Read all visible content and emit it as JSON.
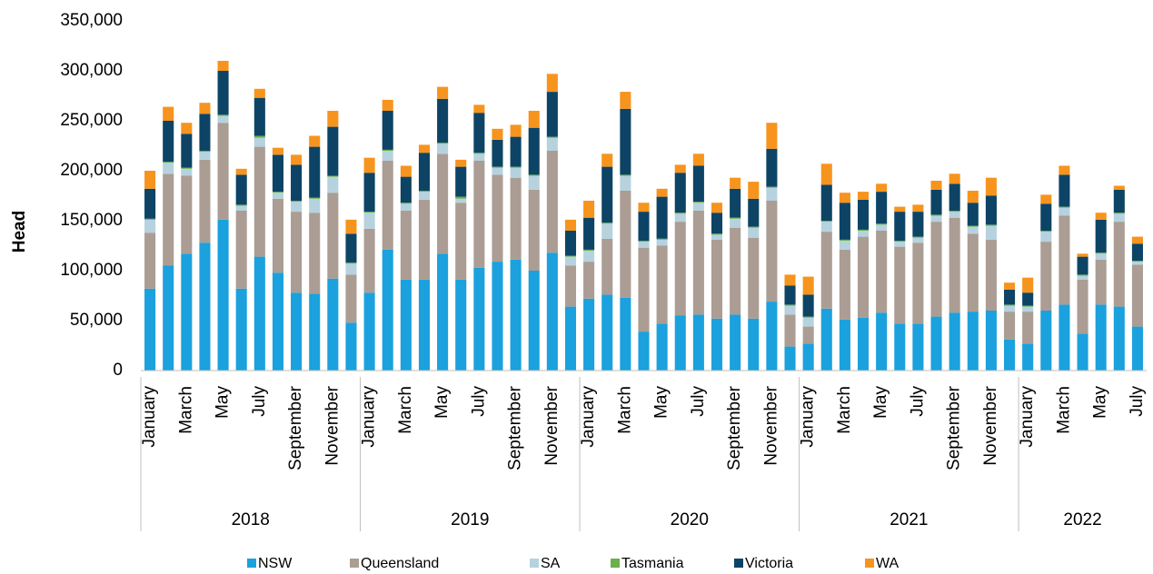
{
  "chart_data": {
    "type": "stacked_bar",
    "y_label": "Head",
    "categories": [
      "January",
      null,
      "March",
      null,
      "May",
      null,
      "July",
      null,
      "September",
      null,
      "November",
      null,
      "January",
      null,
      "March",
      null,
      "May",
      null,
      "July",
      null,
      "September",
      null,
      "November",
      null,
      "January",
      null,
      "March",
      null,
      "May",
      null,
      "July",
      null,
      "September",
      null,
      "November",
      null,
      "January",
      null,
      "March",
      null,
      "May",
      null,
      "July",
      null,
      "September",
      null,
      "November",
      null,
      "January",
      null,
      "March",
      null,
      "May",
      null,
      "July"
    ],
    "groups": [
      {
        "label": "2018",
        "span": 12
      },
      {
        "label": "2019",
        "span": 12
      },
      {
        "label": "2020",
        "span": 12
      },
      {
        "label": "2021",
        "span": 12
      },
      {
        "label": "2022",
        "span": 7
      }
    ],
    "series": [
      {
        "name": "NSW",
        "color": "#1ba1dd",
        "values": [
          82000,
          105000,
          117000,
          128000,
          151000,
          82000,
          114000,
          98000,
          78000,
          77000,
          92000,
          48000,
          78000,
          121000,
          91000,
          91000,
          117000,
          91000,
          103000,
          109000,
          111000,
          100000,
          118000,
          64000,
          72000,
          76000,
          73000,
          39000,
          47000,
          55000,
          56000,
          52000,
          56000,
          52000,
          69000,
          24000,
          27000,
          62000,
          51000,
          53000,
          58000,
          47000,
          47000,
          54000,
          58000,
          59000,
          60000,
          31000,
          27000,
          60000,
          66000,
          37000,
          66000,
          64000,
          44000
        ]
      },
      {
        "name": "Queensland",
        "color": "#ab9d93",
        "values": [
          56000,
          92000,
          78000,
          83000,
          97000,
          78000,
          110000,
          74000,
          81000,
          81000,
          86000,
          48000,
          64000,
          89000,
          69000,
          80000,
          100000,
          77000,
          107000,
          87000,
          82000,
          81000,
          102000,
          41000,
          37000,
          56000,
          107000,
          84000,
          78000,
          94000,
          104000,
          79000,
          87000,
          81000,
          101000,
          32000,
          17000,
          77000,
          70000,
          81000,
          82000,
          77000,
          81000,
          95000,
          95000,
          78000,
          71000,
          28000,
          32000,
          69000,
          89000,
          54000,
          45000,
          85000,
          62000
        ]
      },
      {
        "name": "SA",
        "color": "#b6d2df",
        "values": [
          13000,
          11000,
          7000,
          8000,
          7000,
          5000,
          9000,
          6000,
          10000,
          14000,
          16000,
          11000,
          16000,
          10000,
          7000,
          8000,
          10000,
          4000,
          7000,
          7000,
          10000,
          14000,
          13000,
          9000,
          11000,
          15000,
          15000,
          6000,
          6000,
          8000,
          8000,
          5000,
          9000,
          10000,
          13000,
          9000,
          9000,
          10000,
          9000,
          6000,
          6000,
          5000,
          5000,
          6000,
          6000,
          7000,
          14000,
          6000,
          5000,
          10000,
          8000,
          4000,
          6000,
          8000,
          3000
        ]
      },
      {
        "name": "Tasmania",
        "color": "#6ab04c",
        "values": [
          1000,
          1000,
          1000,
          1000,
          1000,
          1000,
          2000,
          1000,
          1000,
          1000,
          1000,
          1000,
          1000,
          1000,
          1000,
          1000,
          1000,
          2000,
          1000,
          1000,
          1000,
          1000,
          1000,
          1000,
          1000,
          1000,
          1000,
          1000,
          1000,
          1000,
          1000,
          1000,
          1000,
          1000,
          1000,
          1000,
          1000,
          1000,
          1000,
          1000,
          1000,
          1000,
          1000,
          1000,
          1000,
          1000,
          1000,
          1000,
          1000,
          1000,
          1000,
          1000,
          1000,
          1000,
          1000
        ]
      },
      {
        "name": "Victoria",
        "color": "#0d4466",
        "values": [
          30000,
          41000,
          34000,
          37000,
          44000,
          30000,
          38000,
          37000,
          36000,
          51000,
          49000,
          29000,
          39000,
          39000,
          26000,
          38000,
          44000,
          30000,
          40000,
          27000,
          30000,
          47000,
          45000,
          25000,
          32000,
          56000,
          66000,
          29000,
          42000,
          40000,
          36000,
          21000,
          29000,
          28000,
          38000,
          19000,
          22000,
          36000,
          37000,
          30000,
          32000,
          29000,
          25000,
          25000,
          27000,
          23000,
          29000,
          15000,
          13000,
          27000,
          32000,
          18000,
          33000,
          23000,
          17000
        ]
      },
      {
        "name": "WA",
        "color": "#f7941d",
        "values": [
          18000,
          14000,
          11000,
          11000,
          10000,
          6000,
          9000,
          7000,
          10000,
          11000,
          16000,
          14000,
          15000,
          11000,
          11000,
          8000,
          12000,
          7000,
          8000,
          11000,
          12000,
          17000,
          18000,
          11000,
          17000,
          13000,
          17000,
          9000,
          8000,
          8000,
          12000,
          10000,
          11000,
          17000,
          26000,
          11000,
          18000,
          21000,
          10000,
          8000,
          8000,
          5000,
          7000,
          9000,
          10000,
          12000,
          18000,
          7000,
          15000,
          9000,
          9000,
          3000,
          7000,
          4000,
          7000
        ]
      }
    ],
    "ylim": [
      0,
      350000
    ],
    "yticks": [
      0,
      {
        "value": 50000,
        "label": "50,000"
      },
      {
        "value": 100000,
        "label": "100,000"
      },
      {
        "value": 150000,
        "label": "150,000"
      },
      {
        "value": 200000,
        "label": "200,000"
      },
      {
        "value": 250000,
        "label": "250,000"
      },
      {
        "value": 300000,
        "label": "300,000"
      },
      {
        "value": 350000,
        "label": "350,000"
      }
    ],
    "grid": false,
    "legend": "bottom"
  }
}
